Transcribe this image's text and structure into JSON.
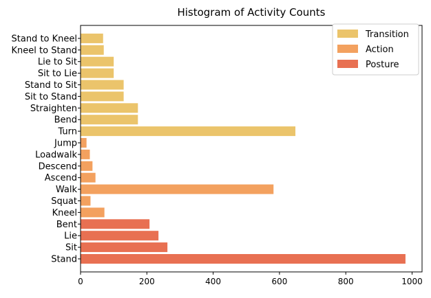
{
  "chart_data": {
    "type": "bar",
    "orientation": "horizontal",
    "title": "Histogram of Activity Counts",
    "xlabel": "",
    "ylabel": "",
    "xlim": [
      0,
      1030
    ],
    "xticks": [
      0,
      200,
      400,
      600,
      800,
      1000
    ],
    "grid": false,
    "legend_position": "top-right",
    "series": [
      {
        "name": "Transition",
        "color": "#EBC46B"
      },
      {
        "name": "Action",
        "color": "#F3A15F"
      },
      {
        "name": "Posture",
        "color": "#E87052"
      }
    ],
    "categories": [
      {
        "label": "Stand",
        "value": 980,
        "group": "Posture"
      },
      {
        "label": "Sit",
        "value": 262,
        "group": "Posture"
      },
      {
        "label": "Lie",
        "value": 235,
        "group": "Posture"
      },
      {
        "label": "Bent",
        "value": 208,
        "group": "Posture"
      },
      {
        "label": "Kneel",
        "value": 72,
        "group": "Action"
      },
      {
        "label": "Squat",
        "value": 30,
        "group": "Action"
      },
      {
        "label": "Walk",
        "value": 582,
        "group": "Action"
      },
      {
        "label": "Ascend",
        "value": 45,
        "group": "Action"
      },
      {
        "label": "Descend",
        "value": 36,
        "group": "Action"
      },
      {
        "label": "Loadwalk",
        "value": 28,
        "group": "Action"
      },
      {
        "label": "Jump",
        "value": 18,
        "group": "Action"
      },
      {
        "label": "Turn",
        "value": 648,
        "group": "Transition"
      },
      {
        "label": "Bend",
        "value": 173,
        "group": "Transition"
      },
      {
        "label": "Straighten",
        "value": 173,
        "group": "Transition"
      },
      {
        "label": "Sit to Stand",
        "value": 130,
        "group": "Transition"
      },
      {
        "label": "Stand to Sit",
        "value": 130,
        "group": "Transition"
      },
      {
        "label": "Sit to Lie",
        "value": 100,
        "group": "Transition"
      },
      {
        "label": "Lie to Sit",
        "value": 100,
        "group": "Transition"
      },
      {
        "label": "Kneel to Stand",
        "value": 70,
        "group": "Transition"
      },
      {
        "label": "Stand to Kneel",
        "value": 68,
        "group": "Transition"
      }
    ]
  }
}
